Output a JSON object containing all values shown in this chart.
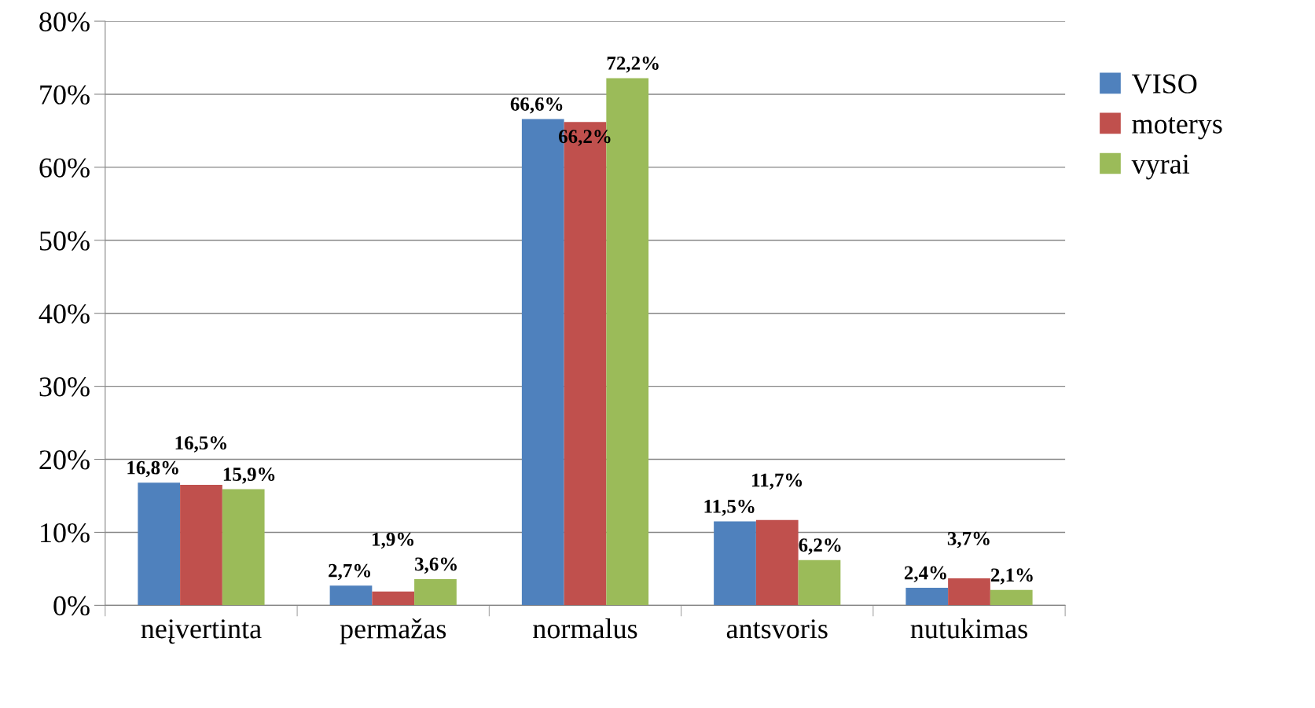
{
  "chart_data": {
    "type": "bar",
    "categories": [
      "neįvertinta",
      "permažas",
      "normalus",
      "antsvoris",
      "nutukimas"
    ],
    "series": [
      {
        "name": "VISO",
        "color": "#4f81bd",
        "values": [
          16.8,
          2.7,
          66.6,
          11.5,
          2.4
        ],
        "value_labels": [
          "16,8%",
          "2,7%",
          "66,6%",
          "11,5%",
          "2,4%"
        ]
      },
      {
        "name": "moterys",
        "color": "#c0504d",
        "values": [
          16.5,
          1.9,
          66.2,
          11.7,
          3.7
        ],
        "value_labels": [
          "16,5%",
          "1,9%",
          "66,2%",
          "11,7%",
          "3,7%"
        ]
      },
      {
        "name": "vyrai",
        "color": "#9bbb59",
        "values": [
          15.9,
          3.6,
          72.2,
          6.2,
          2.1
        ],
        "value_labels": [
          "15,9%",
          "3,6%",
          "72,2%",
          "6,2%",
          "2,1%"
        ]
      }
    ],
    "ylim": [
      0,
      80
    ],
    "yticks": [
      {
        "value": 0,
        "label": "0%"
      },
      {
        "value": 10,
        "label": "10%"
      },
      {
        "value": 20,
        "label": "20%"
      },
      {
        "value": 30,
        "label": "30%"
      },
      {
        "value": 40,
        "label": "40%"
      },
      {
        "value": 50,
        "label": "50%"
      },
      {
        "value": 60,
        "label": "60%"
      },
      {
        "value": 70,
        "label": "70%"
      },
      {
        "value": 80,
        "label": "80%"
      }
    ],
    "grid": "y",
    "legend": "right"
  }
}
